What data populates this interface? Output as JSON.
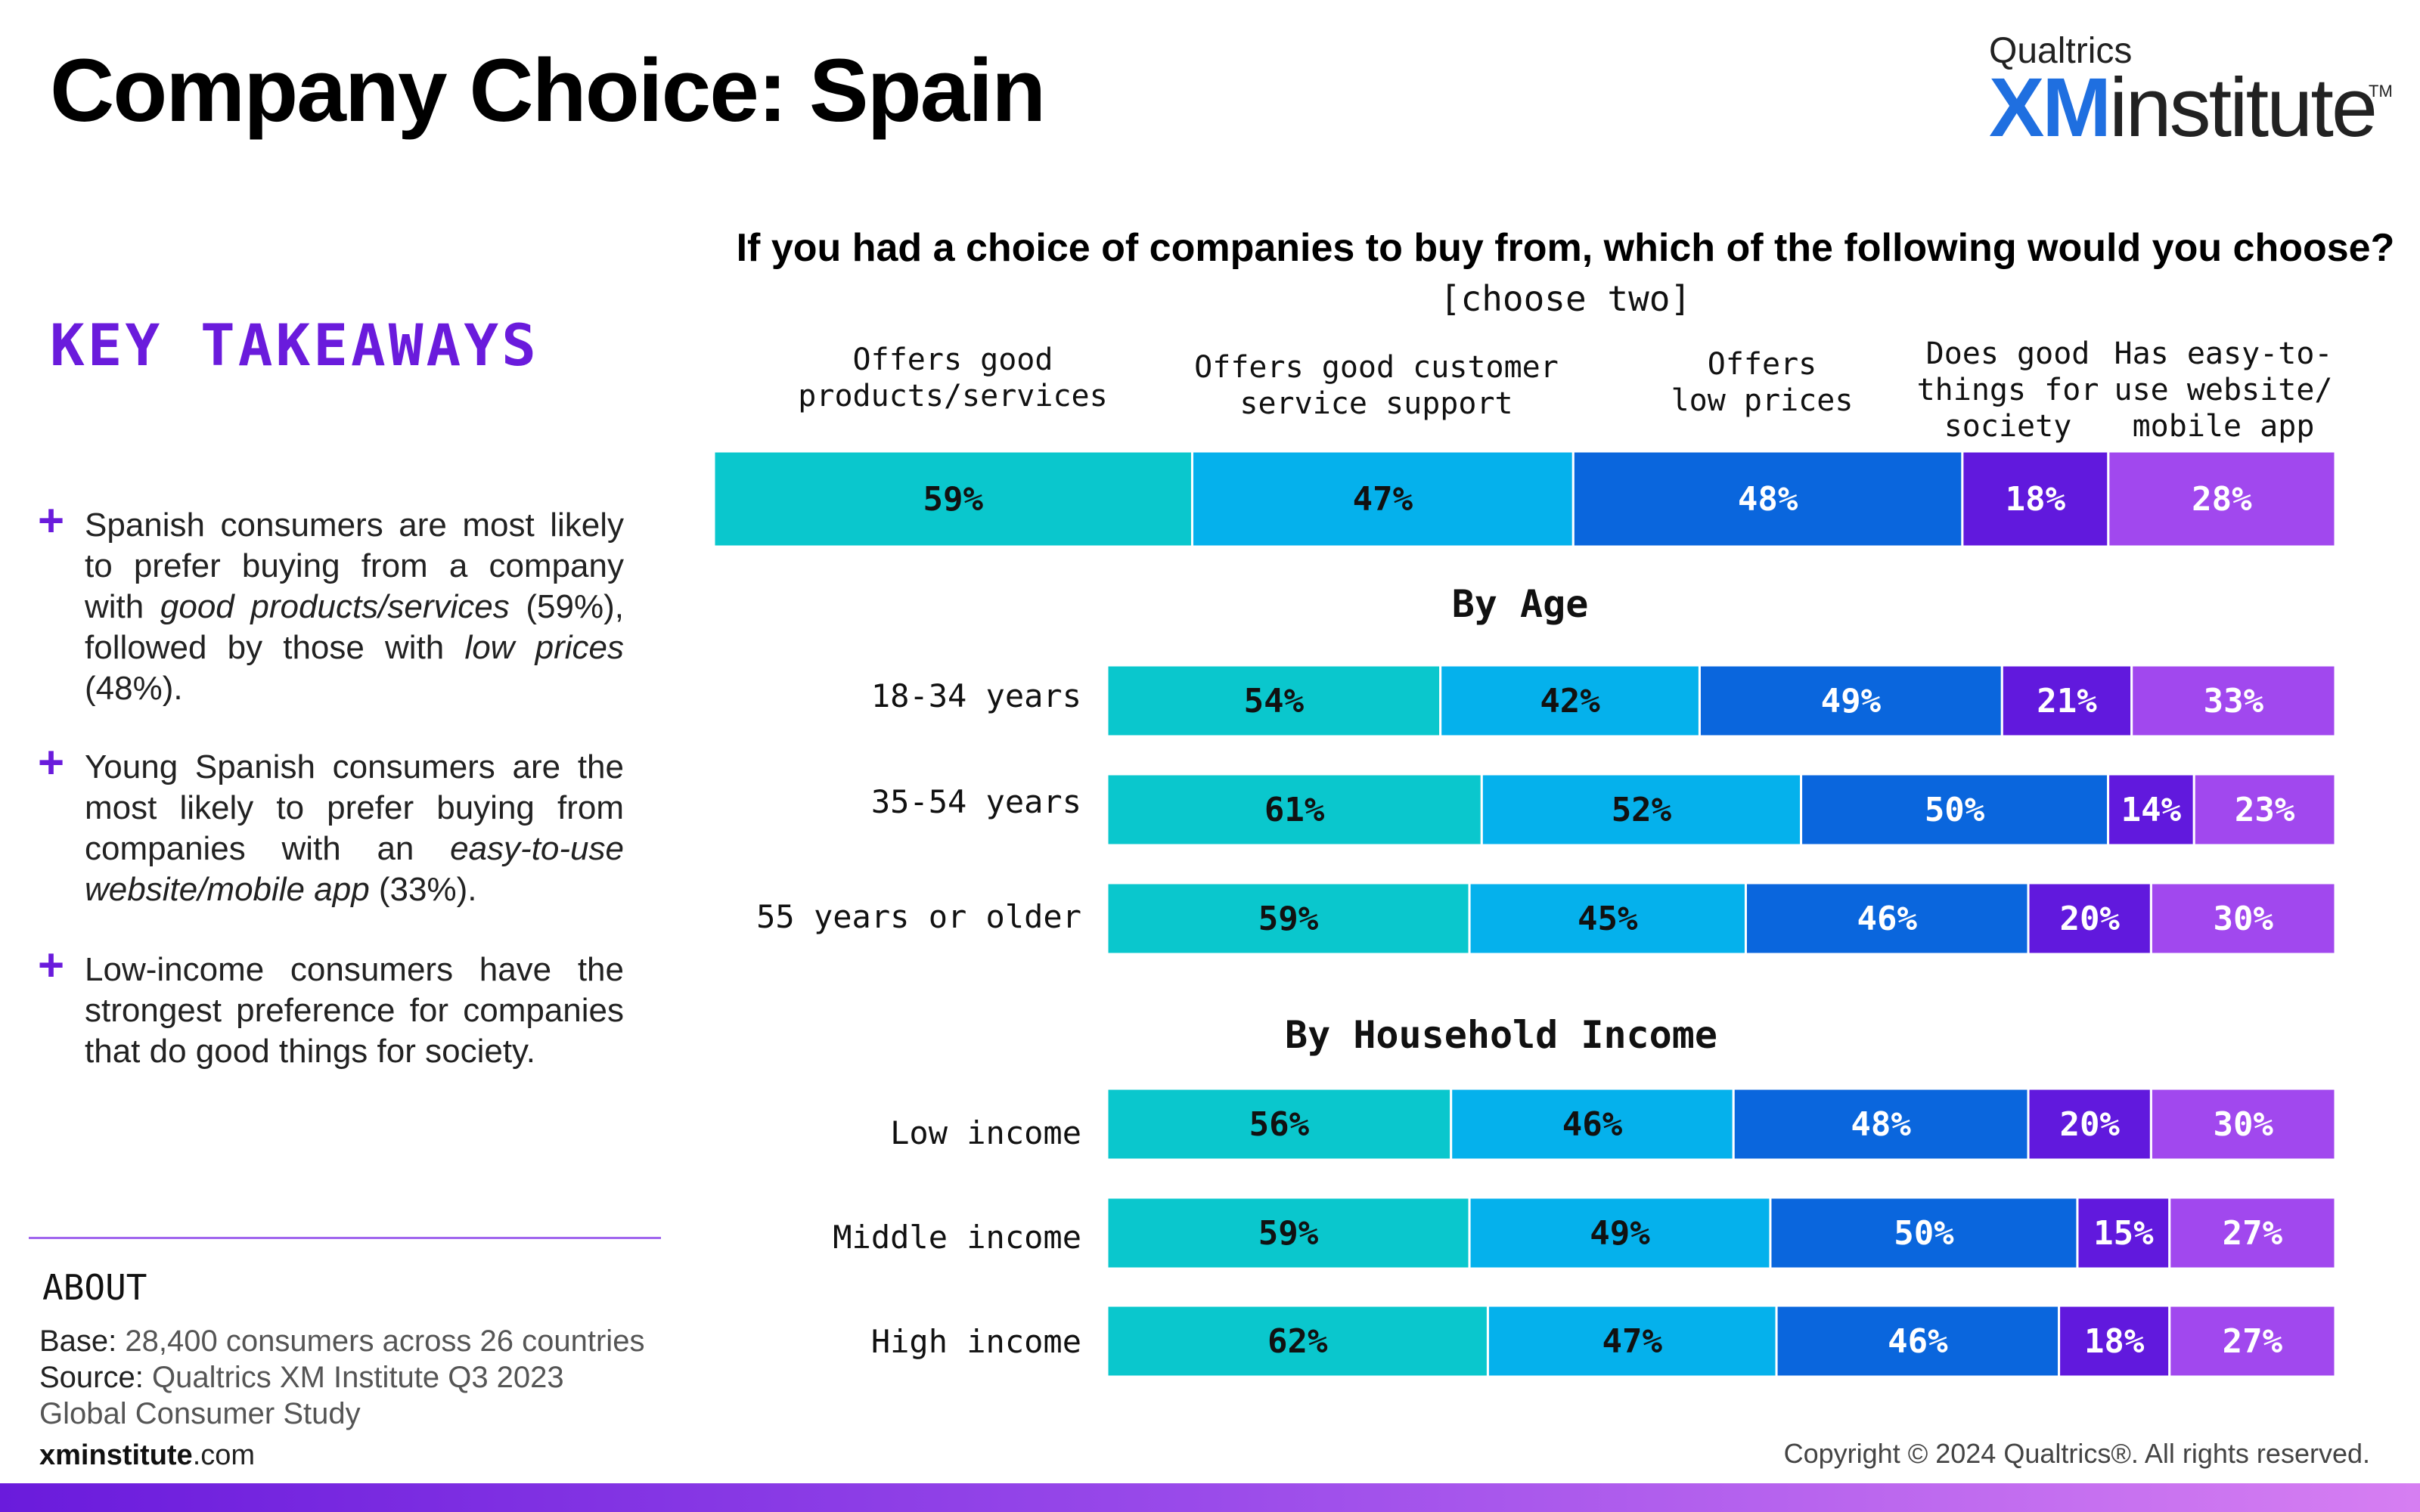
{
  "page": {
    "title": "Company Choice: Spain",
    "logo": {
      "top": "Qualtrics",
      "xm": "XM",
      "institute": "institute",
      "tm": "TM"
    },
    "key_takeaways_title": "KEY TAKEAWAYS",
    "takeaways": [
      {
        "plus": "+",
        "parts": [
          {
            "t": "Spanish consumers are most likely to prefer buying from a company with ",
            "i": false
          },
          {
            "t": "good products/services",
            "i": true
          },
          {
            "t": " (59%), followed by those with ",
            "i": false
          },
          {
            "t": "low prices",
            "i": true
          },
          {
            "t": " (48%).",
            "i": false
          }
        ]
      },
      {
        "plus": "+",
        "parts": [
          {
            "t": "Young Spanish consumers are the most likely to prefer buying from companies with an ",
            "i": false
          },
          {
            "t": "easy-to-use website/mobile app",
            "i": true
          },
          {
            "t": " (33%).",
            "i": false
          }
        ]
      },
      {
        "plus": "+",
        "parts": [
          {
            "t": "Low-income consumers have the strongest preference for companies that do good things for society.",
            "i": false
          }
        ]
      }
    ],
    "about": {
      "heading": "ABOUT",
      "base_label": "Base:",
      "base_text": " 28,400 consumers across 26 countries",
      "source_label": "Source:",
      "source_text": " Qualtrics XM Institute Q3 2023 Global Consumer Study"
    },
    "site": {
      "bold": "xminstitute",
      "rest": ".com"
    },
    "copyright": "Copyright © 2024 Qualtrics®. All rights reserved."
  },
  "chart_data": {
    "type": "bar",
    "stacked": true,
    "orientation": "horizontal",
    "title": "If you had a choice of companies to buy from, which of the following would you choose?",
    "subtitle": "[choose two]",
    "series": [
      {
        "name": "Offers good products/services",
        "color": "#0ac7cd"
      },
      {
        "name": "Offers good customer service support",
        "color": "#05b1ec"
      },
      {
        "name": "Offers low prices",
        "color": "#0a66dd"
      },
      {
        "name": "Does good things for society",
        "color": "#6119dd"
      },
      {
        "name": "Has easy-to-use website/ mobile app",
        "color": "#a148ee"
      }
    ],
    "column_headers": [
      [
        "Offers good",
        "products/services"
      ],
      [
        "Offers good customer",
        "service support"
      ],
      [
        "Offers",
        "low prices"
      ],
      [
        "Does good",
        "things for",
        "society"
      ],
      [
        "Has easy-to-",
        "use website/",
        "mobile app"
      ]
    ],
    "overall": {
      "label": "",
      "values": [
        59,
        47,
        48,
        18,
        28
      ]
    },
    "groups": [
      {
        "heading": "By Age",
        "rows": [
          {
            "label": "18-34 years",
            "values": [
              54,
              42,
              49,
              21,
              33
            ]
          },
          {
            "label": "35-54 years",
            "values": [
              61,
              52,
              50,
              14,
              23
            ]
          },
          {
            "label": "55 years or older",
            "values": [
              59,
              45,
              46,
              20,
              30
            ]
          }
        ]
      },
      {
        "heading": "By Household Income",
        "rows": [
          {
            "label": "Low income",
            "values": [
              56,
              46,
              48,
              20,
              30
            ]
          },
          {
            "label": "Middle income",
            "values": [
              59,
              49,
              50,
              15,
              27
            ]
          },
          {
            "label": "High income",
            "values": [
              62,
              47,
              46,
              18,
              27
            ]
          }
        ]
      }
    ],
    "value_suffix": "%",
    "label_colors": {
      "dark": "#111111",
      "light": "#ffffff"
    }
  }
}
